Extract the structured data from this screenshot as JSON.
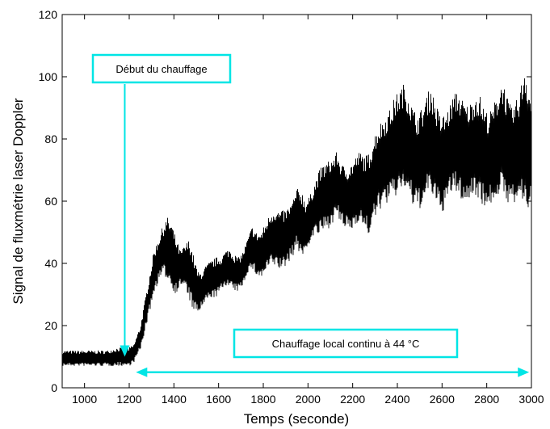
{
  "chart_data": {
    "type": "line",
    "xlabel": "Temps (seconde)",
    "ylabel": "Signal de fluxmétrie laser Doppler",
    "xlim": [
      900,
      3000
    ],
    "ylim": [
      0,
      120
    ],
    "xticks": [
      1000,
      1200,
      1400,
      1600,
      1800,
      2000,
      2200,
      2400,
      2600,
      2800,
      3000
    ],
    "yticks": [
      0,
      20,
      40,
      60,
      80,
      100,
      120
    ],
    "grid": false,
    "line_color": "#000000",
    "annotation_color": "#00E5E5",
    "series": [
      {
        "envelope": {
          "x": [
            900,
            950,
            1000,
            1050,
            1100,
            1150,
            1200,
            1220,
            1250,
            1270,
            1290,
            1310,
            1330,
            1350,
            1370,
            1390,
            1410,
            1430,
            1450,
            1470,
            1490,
            1510,
            1530,
            1550,
            1570,
            1590,
            1610,
            1630,
            1650,
            1670,
            1690,
            1710,
            1730,
            1750,
            1770,
            1790,
            1810,
            1830,
            1850,
            1870,
            1890,
            1910,
            1930,
            1950,
            1970,
            1990,
            2010,
            2030,
            2050,
            2070,
            2090,
            2110,
            2130,
            2150,
            2170,
            2190,
            2210,
            2230,
            2250,
            2270,
            2290,
            2310,
            2330,
            2350,
            2370,
            2390,
            2410,
            2430,
            2450,
            2470,
            2490,
            2510,
            2530,
            2550,
            2570,
            2590,
            2610,
            2630,
            2650,
            2670,
            2690,
            2710,
            2730,
            2750,
            2770,
            2790,
            2810,
            2830,
            2850,
            2870,
            2890,
            2910,
            2930,
            2950,
            2970,
            2990,
            3000
          ],
          "low": [
            7,
            7,
            7,
            7,
            7,
            7,
            7,
            8,
            12,
            18,
            24,
            30,
            34,
            36,
            35,
            32,
            30,
            33,
            32,
            28,
            24,
            24,
            26,
            28,
            29,
            29,
            31,
            33,
            32,
            31,
            31,
            33,
            37,
            38,
            36,
            35,
            37,
            39,
            39,
            38,
            38,
            40,
            42,
            45,
            42,
            43,
            47,
            49,
            49,
            50,
            51,
            53,
            55,
            52,
            51,
            50,
            52,
            54,
            51,
            49,
            52,
            56,
            58,
            59,
            60,
            61,
            63,
            64,
            62,
            58,
            57,
            58,
            61,
            63,
            59,
            56,
            57,
            61,
            63,
            62,
            60,
            59,
            61,
            62,
            60,
            58,
            58,
            60,
            62,
            61,
            60,
            58,
            59,
            60,
            58,
            57,
            56
          ],
          "high": [
            12,
            12,
            12,
            12,
            12,
            13,
            13,
            14,
            20,
            28,
            36,
            44,
            48,
            52,
            55,
            53,
            48,
            44,
            46,
            48,
            42,
            37,
            38,
            40,
            41,
            42,
            42,
            44,
            45,
            43,
            42,
            44,
            48,
            52,
            50,
            50,
            53,
            56,
            58,
            57,
            57,
            58,
            60,
            64,
            64,
            60,
            62,
            66,
            70,
            72,
            73,
            74,
            76,
            72,
            71,
            72,
            74,
            76,
            75,
            75,
            80,
            84,
            86,
            88,
            90,
            94,
            96,
            98,
            95,
            90,
            88,
            90,
            94,
            97,
            92,
            88,
            88,
            90,
            94,
            96,
            93,
            91,
            92,
            95,
            94,
            90,
            88,
            91,
            95,
            100,
            94,
            90,
            92,
            96,
            105,
            97,
            93
          ]
        }
      }
    ],
    "annotations": [
      {
        "text": "Début du chauffage",
        "target_x": 1180,
        "target_y": 10
      },
      {
        "text": "Chauffage local continu à 44 °C",
        "arrow_x_from": 1230,
        "arrow_x_to": 2990,
        "arrow_y": 5
      }
    ]
  }
}
